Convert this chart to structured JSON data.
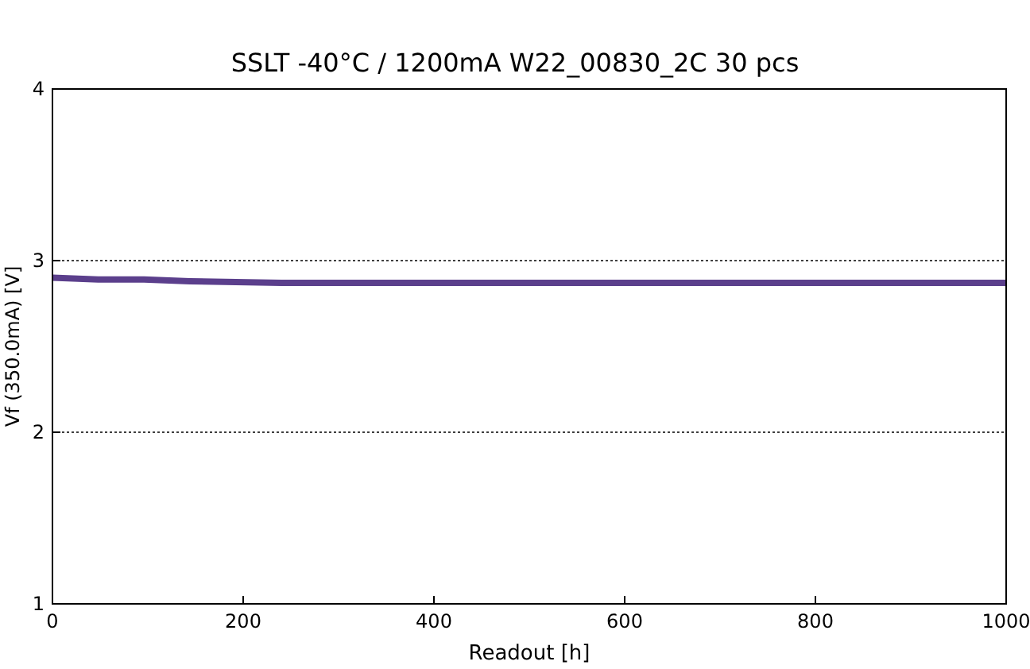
{
  "chart_data": {
    "type": "line",
    "subtitle": "SSLT -40°C / 1200mA  W22_00830_2C  30 pcs",
    "xlabel": "Readout [h]",
    "ylabel": "Vf (350.0mA) [V]",
    "xlim": [
      0,
      1000
    ],
    "xticks": [
      0,
      200,
      400,
      600,
      800,
      1000
    ],
    "ylim": [
      1,
      4
    ],
    "yticks": [
      1,
      2,
      3,
      4
    ],
    "grid": "y",
    "marker": "none",
    "line_style": "solid",
    "series": [
      {
        "color": "#5b3f8c",
        "x": [
          0,
          48,
          96,
          144,
          240,
          500,
          1000
        ],
        "values": [
          2.9,
          2.89,
          2.89,
          2.88,
          2.87,
          2.87,
          2.87
        ]
      }
    ]
  }
}
